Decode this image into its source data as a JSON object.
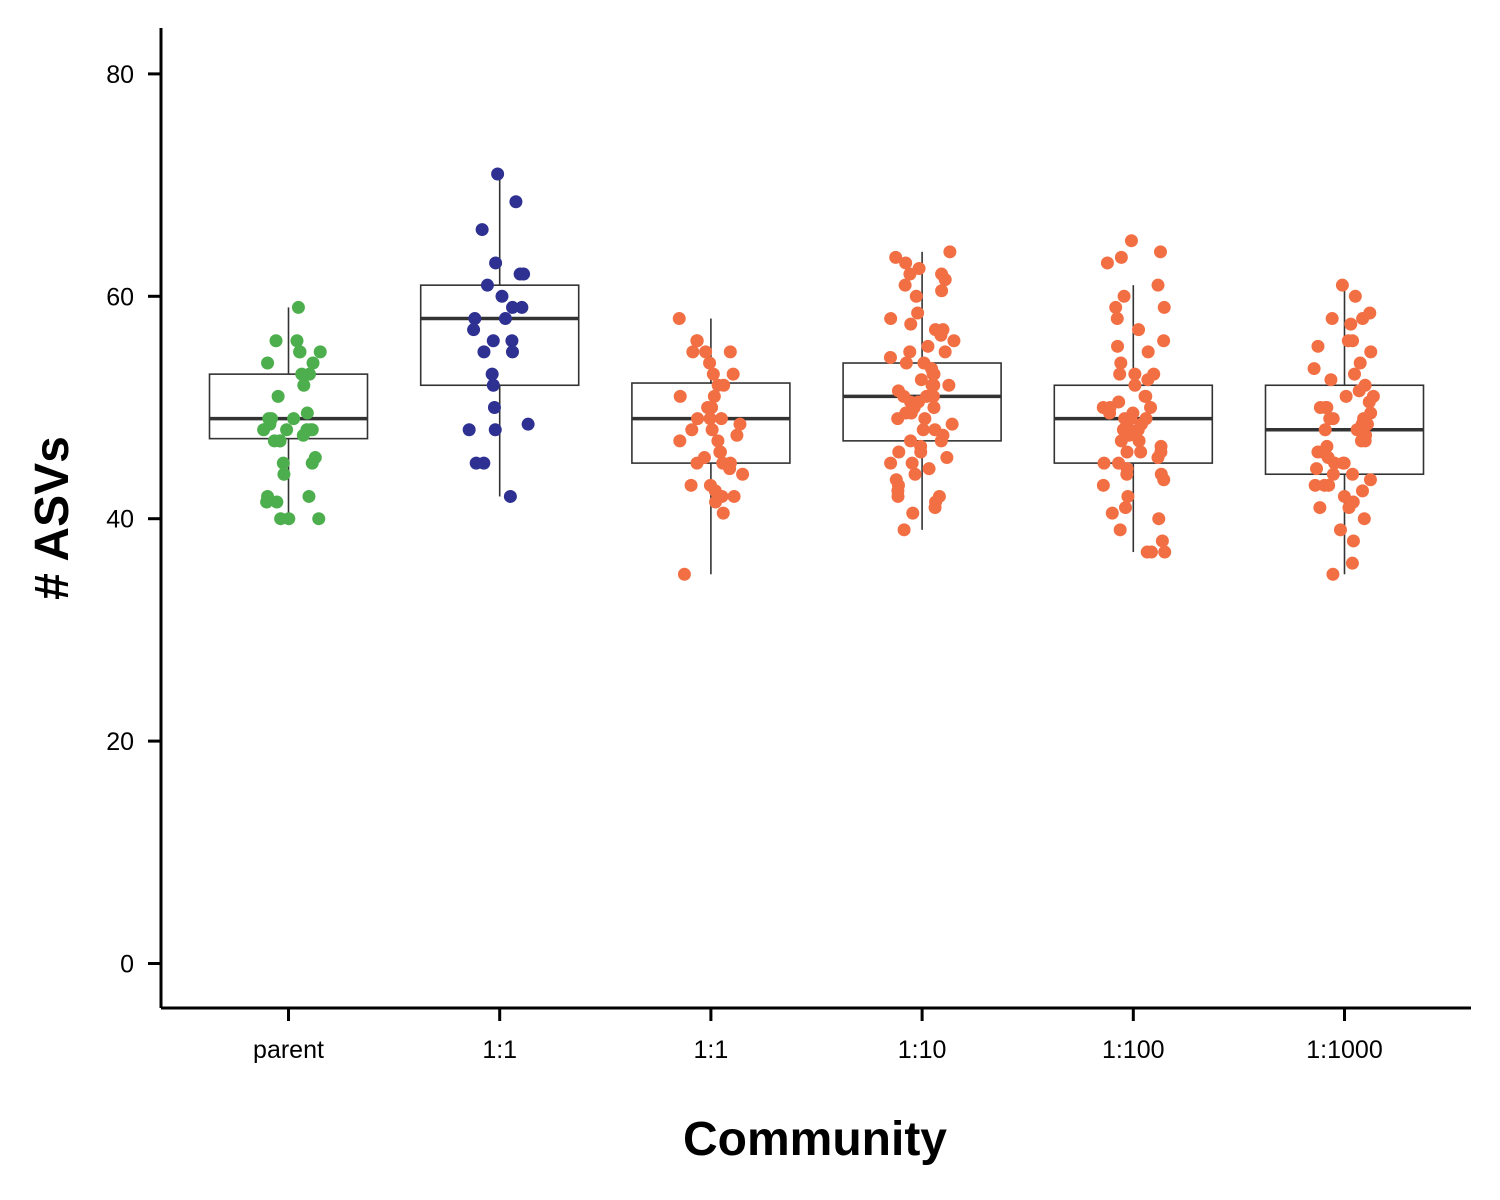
{
  "chart_data": {
    "type": "boxplot",
    "title": "",
    "xlabel": "Community",
    "ylabel": "# ASVs",
    "ylim": [
      -4,
      84
    ],
    "yticks": [
      0,
      20,
      40,
      60,
      80
    ],
    "grid": false,
    "legend": "none",
    "categories": [
      "parent",
      "1:1",
      "1:1",
      "1:10",
      "1:100",
      "1:1000"
    ],
    "colors": [
      "#4cae4c",
      "#2e3192",
      "#f26f44",
      "#f26f44",
      "#f26f44",
      "#f26f44"
    ],
    "boxes": [
      {
        "min": 40,
        "q1": 47.2,
        "median": 49,
        "q3": 53,
        "max": 59
      },
      {
        "min": 42,
        "q1": 52,
        "median": 58,
        "q3": 61,
        "max": 71
      },
      {
        "min": 35,
        "q1": 45,
        "median": 49,
        "q3": 52.2,
        "max": 58
      },
      {
        "min": 39,
        "q1": 47,
        "median": 51,
        "q3": 54,
        "max": 64
      },
      {
        "min": 37,
        "q1": 45,
        "median": 49,
        "q3": 52,
        "max": 61
      },
      {
        "min": 35,
        "q1": 44,
        "median": 48,
        "q3": 52,
        "max": 61
      }
    ],
    "points": [
      [
        59,
        56,
        56,
        55,
        55,
        55,
        54,
        54,
        53,
        53,
        52,
        51,
        49.5,
        49,
        49,
        49,
        48.5,
        48,
        48,
        48,
        48,
        48,
        47.5,
        47,
        47,
        47,
        45.5,
        45,
        45,
        44,
        42,
        42,
        41.5,
        41.5,
        40,
        40,
        40
      ],
      [
        71,
        68.5,
        66,
        63,
        62,
        62,
        61,
        60,
        59,
        59,
        58,
        58,
        57,
        56,
        56,
        55,
        55,
        53,
        52,
        50,
        48.5,
        48,
        48,
        45,
        45,
        42
      ],
      [
        58,
        56,
        56,
        55,
        55,
        55,
        54,
        53,
        53,
        52,
        52,
        51,
        51,
        50,
        50,
        49,
        49,
        49,
        48.5,
        48,
        48,
        47.5,
        47,
        47,
        46,
        46,
        45.5,
        45,
        45,
        45,
        44.5,
        44,
        43,
        43,
        42.5,
        42,
        42,
        41.5,
        40.5,
        35
      ],
      [
        64,
        63.5,
        63,
        62.5,
        62,
        62,
        61.5,
        61,
        60.5,
        60,
        58.5,
        58,
        57.5,
        57,
        57,
        56.5,
        56,
        55.5,
        55,
        55,
        54.5,
        54,
        54,
        53.5,
        53,
        53,
        52.5,
        52,
        52,
        52,
        51.5,
        51,
        51,
        51,
        50.5,
        50.5,
        50,
        50,
        50,
        49.5,
        49.5,
        49,
        49,
        48.5,
        48,
        48,
        47.5,
        47,
        47,
        46.5,
        46,
        46,
        45.5,
        45,
        45,
        44.5,
        44,
        43.5,
        43,
        42.5,
        42,
        42,
        41.5,
        41,
        40.5,
        39
      ],
      [
        65,
        64,
        63.5,
        63,
        61,
        60,
        59,
        59,
        58,
        57,
        56,
        55.5,
        55,
        54,
        53,
        53,
        53,
        52.5,
        52,
        51,
        51,
        50.5,
        50,
        50,
        50,
        49.5,
        49.5,
        49,
        49,
        49,
        48.5,
        48,
        48,
        48,
        47.5,
        47,
        47,
        46.5,
        46,
        46,
        46,
        45.5,
        45,
        45,
        44.5,
        44,
        44,
        43.5,
        43,
        42,
        41,
        40.5,
        40,
        39,
        38,
        37,
        37,
        37
      ],
      [
        61,
        60,
        58.5,
        58,
        58,
        57.5,
        56,
        56,
        55.5,
        55,
        54,
        53.5,
        53,
        52.5,
        52,
        51.5,
        51,
        51,
        50.5,
        50,
        50,
        50,
        49.5,
        49,
        49,
        49,
        48.5,
        48.5,
        48,
        48,
        48,
        47.5,
        47,
        47,
        46.5,
        46,
        46,
        45.5,
        45,
        45,
        45,
        44.5,
        44,
        44,
        43.5,
        43,
        43,
        43,
        42.5,
        42,
        41.5,
        41,
        41,
        40,
        39,
        38,
        36,
        35
      ]
    ]
  }
}
